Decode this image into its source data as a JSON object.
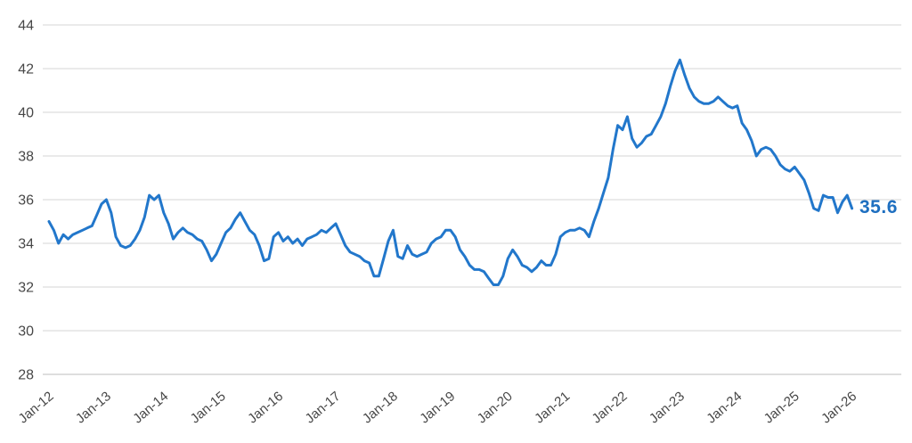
{
  "chart": {
    "final_value_label": "35.6",
    "line_color": "#2277CB",
    "label_color": "#1E6FC0",
    "grid_color": "#DEDEDE",
    "bottom_line_color": "#C9C9C9",
    "tick_text_color": "#474747"
  },
  "chart_data": {
    "type": "line",
    "title": "",
    "xlabel": "",
    "ylabel": "",
    "frequency": "monthly",
    "x_start": "Jan-2012",
    "x_end": "Jan-2026",
    "x_tick_labels": [
      "Jan-12",
      "Jan-13",
      "Jan-14",
      "Jan-15",
      "Jan-16",
      "Jan-17",
      "Jan-18",
      "Jan-19",
      "Jan-20",
      "Jan-21",
      "Jan-22",
      "Jan-23",
      "Jan-24",
      "Jan-25",
      "Jan-26"
    ],
    "y_ticks": [
      28,
      30,
      32,
      34,
      36,
      38,
      40,
      42,
      44
    ],
    "ylim": [
      28,
      44
    ],
    "grid": true,
    "legend_position": "none",
    "last_point_label": "35.6",
    "values": [
      35.0,
      34.6,
      34.0,
      34.4,
      34.2,
      34.4,
      34.5,
      34.6,
      34.7,
      34.8,
      35.3,
      35.8,
      36.0,
      35.4,
      34.3,
      33.9,
      33.8,
      33.9,
      34.2,
      34.6,
      35.2,
      36.2,
      36.0,
      36.2,
      35.4,
      34.9,
      34.2,
      34.5,
      34.7,
      34.5,
      34.4,
      34.2,
      34.1,
      33.7,
      33.2,
      33.5,
      34.0,
      34.5,
      34.7,
      35.1,
      35.4,
      35.0,
      34.6,
      34.4,
      33.9,
      33.2,
      33.3,
      34.3,
      34.5,
      34.1,
      34.3,
      34.0,
      34.2,
      33.9,
      34.2,
      34.3,
      34.4,
      34.6,
      34.5,
      34.7,
      34.9,
      34.4,
      33.9,
      33.6,
      33.5,
      33.4,
      33.2,
      33.1,
      32.5,
      32.5,
      33.3,
      34.1,
      34.6,
      33.4,
      33.3,
      33.9,
      33.5,
      33.4,
      33.5,
      33.6,
      34.0,
      34.2,
      34.3,
      34.6,
      34.6,
      34.3,
      33.7,
      33.4,
      33.0,
      32.8,
      32.8,
      32.7,
      32.4,
      32.1,
      32.1,
      32.5,
      33.3,
      33.7,
      33.4,
      33.0,
      32.9,
      32.7,
      32.9,
      33.2,
      33.0,
      33.0,
      33.5,
      34.3,
      34.5,
      34.6,
      34.6,
      34.7,
      34.6,
      34.3,
      35.0,
      35.6,
      36.3,
      37.0,
      38.3,
      39.4,
      39.2,
      39.8,
      38.8,
      38.4,
      38.6,
      38.9,
      39.0,
      39.4,
      39.8,
      40.4,
      41.2,
      41.9,
      42.4,
      41.7,
      41.1,
      40.7,
      40.5,
      40.4,
      40.4,
      40.5,
      40.7,
      40.5,
      40.3,
      40.2,
      40.3,
      39.5,
      39.2,
      38.7,
      38.0,
      38.3,
      38.4,
      38.3,
      38.0,
      37.6,
      37.4,
      37.3,
      37.5,
      37.2,
      36.9,
      36.3,
      35.6,
      35.5,
      36.2,
      36.1,
      36.1,
      35.4,
      35.9,
      36.2,
      35.6
    ]
  }
}
